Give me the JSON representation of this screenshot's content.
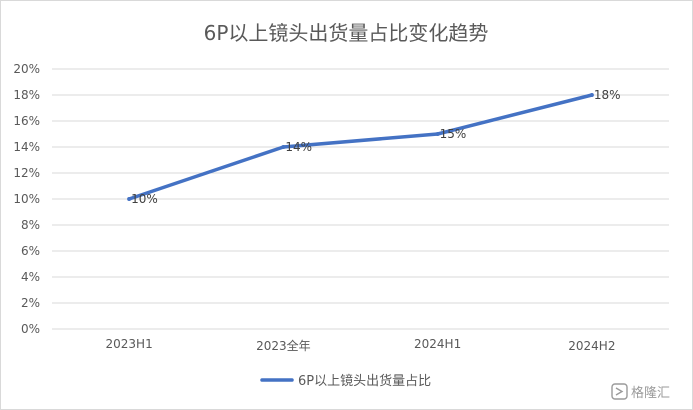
{
  "chart_data": {
    "type": "line",
    "title": "6P以上镜头出货量占比变化趋势",
    "categories": [
      "2023H1",
      "2023全年",
      "2024H1",
      "2024H2"
    ],
    "series": [
      {
        "name": "6P以上镜头出货量占比",
        "values": [
          10,
          14,
          15,
          18
        ],
        "color": "#4472c4"
      }
    ],
    "data_labels": [
      "10%",
      "14%",
      "15%",
      "18%"
    ],
    "y_ticks": [
      "0%",
      "2%",
      "4%",
      "6%",
      "8%",
      "10%",
      "12%",
      "14%",
      "16%",
      "18%",
      "20%"
    ],
    "ylim": [
      0,
      20
    ],
    "grid": true,
    "legend_position": "bottom"
  },
  "watermark": {
    "text": "格隆汇"
  }
}
